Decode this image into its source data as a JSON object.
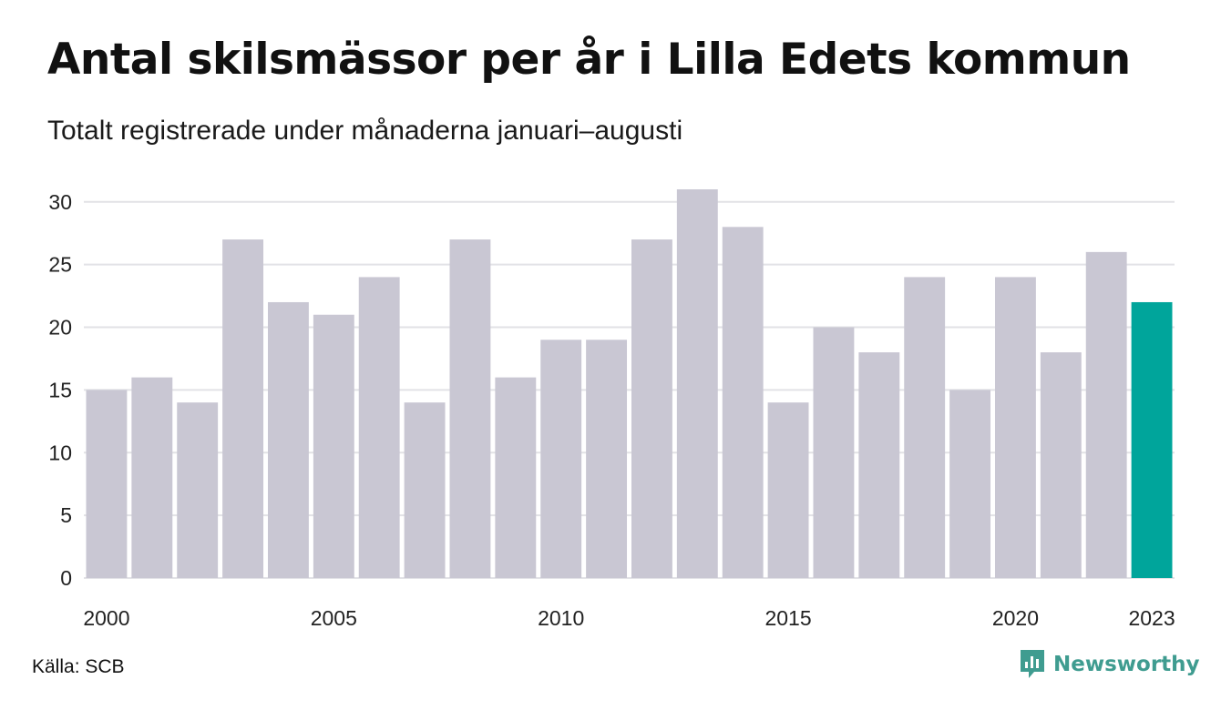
{
  "colors": {
    "bar_default": "#c9c7d3",
    "bar_highlight": "#00a59b",
    "grid": "#e2e2e6",
    "brand": "#3f9c90"
  },
  "footer": {
    "source": "Källa: SCB",
    "brand_name": "Newsworthy",
    "brand_icon": "newsworthy-logo-icon"
  },
  "chart_data": {
    "type": "bar",
    "title": "Antal skilsmässor per år i Lilla Edets kommun",
    "subtitle": "Totalt registrerade under månaderna januari–augusti",
    "xlabel": "",
    "ylabel": "",
    "categories": [
      2000,
      2001,
      2002,
      2003,
      2004,
      2005,
      2006,
      2007,
      2008,
      2009,
      2010,
      2011,
      2012,
      2013,
      2014,
      2015,
      2016,
      2017,
      2018,
      2019,
      2020,
      2021,
      2022,
      2023
    ],
    "values": [
      15,
      16,
      14,
      27,
      22,
      21,
      24,
      14,
      27,
      16,
      19,
      19,
      27,
      31,
      28,
      14,
      20,
      18,
      24,
      15,
      24,
      18,
      26,
      22
    ],
    "highlight_category": 2023,
    "ylim": [
      0,
      31
    ],
    "y_ticks": [
      0,
      5,
      10,
      15,
      20,
      25,
      30
    ],
    "x_tick_labels": [
      "2000",
      "2005",
      "2010",
      "2015",
      "2020",
      "2023"
    ],
    "grid": "horizontal",
    "legend": "none"
  }
}
